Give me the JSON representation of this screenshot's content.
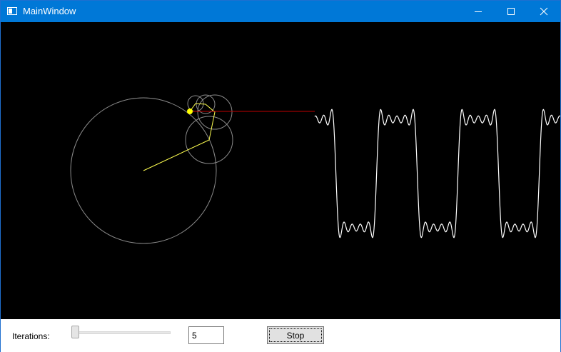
{
  "window": {
    "title": "MainWindow",
    "titlebar_color": "#0078d7",
    "canvas_color": "#000000"
  },
  "caption_buttons": {
    "minimize_icon": "minimize-icon",
    "maximize_icon": "maximize-icon",
    "close_icon": "close-icon"
  },
  "visualization": {
    "description_type": "fourier-series-square-wave",
    "circle_color": "#808080",
    "radius_line_color": "#ffff40",
    "connector_color": "#cc0000",
    "wave_color": "#ffffff",
    "point_color": "#ffff00"
  },
  "controls": {
    "iterations_label": "Iterations:",
    "iterations_value": "5",
    "slider_value": 0,
    "stop_label": "Stop"
  }
}
